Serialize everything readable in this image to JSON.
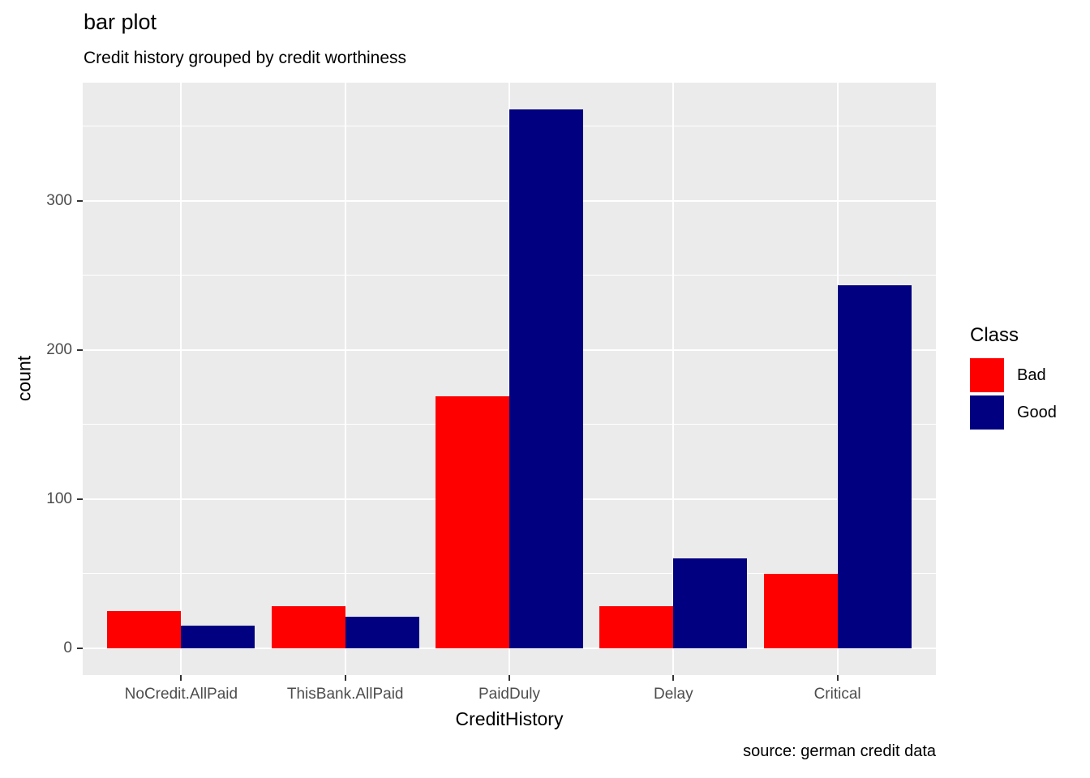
{
  "chart": {
    "title": "bar plot",
    "subtitle": "Credit history grouped by credit worthiness",
    "caption": "source: german credit data"
  },
  "chart_data": {
    "type": "bar",
    "grouping": "dodged",
    "title": "bar plot",
    "subtitle": "Credit history grouped by credit worthiness",
    "caption": "source: german credit data",
    "xlabel": "CreditHistory",
    "ylabel": "count",
    "categories": [
      "NoCredit.AllPaid",
      "ThisBank.AllPaid",
      "PaidDuly",
      "Delay",
      "Critical"
    ],
    "series": [
      {
        "name": "Bad",
        "color": "#FF0000",
        "values": [
          25,
          28,
          169,
          28,
          50
        ]
      },
      {
        "name": "Good",
        "color": "#000080",
        "values": [
          15,
          21,
          361,
          60,
          243
        ]
      }
    ],
    "legend_title": "Class",
    "legend_position": "right",
    "ylim": [
      0,
      361
    ],
    "y_expansion": 0.05,
    "yticks": [
      0,
      100,
      200,
      300
    ],
    "yticks_minor": [
      50,
      150,
      250,
      350
    ],
    "grid": "on",
    "style": {
      "panel_background": "#EBEBEB",
      "grid_color": "#FFFFFF",
      "tick_mark_color": "#333333",
      "axis_text_color": "#4D4D4D",
      "title_text_color": "#000000",
      "background": "#FFFFFF"
    }
  }
}
